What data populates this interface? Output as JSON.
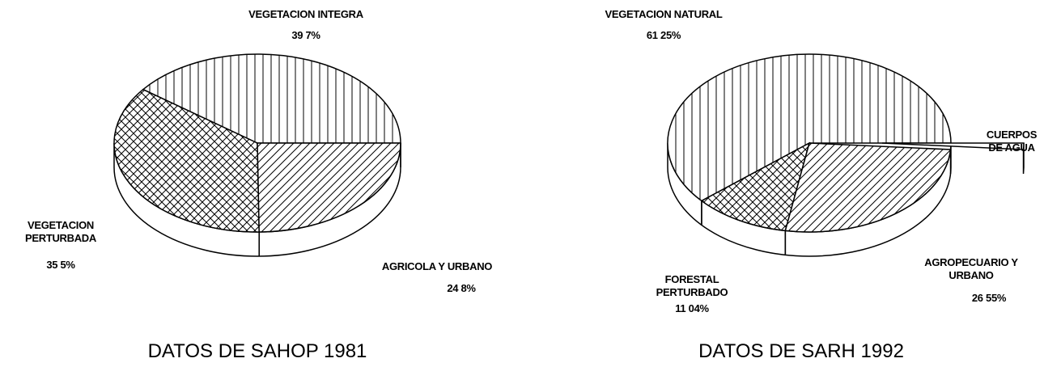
{
  "chart_data": [
    {
      "type": "pie",
      "title": "DATOS DE SAHOP 1981",
      "categories": [
        "VEGETACION INTEGRA",
        "VEGETACION PERTURBADA",
        "AGRICOLA Y URBANO"
      ],
      "values": [
        39.7,
        35.5,
        24.8
      ],
      "value_labels": [
        "39 7%",
        "35 5%",
        "24 8%"
      ],
      "color": "#ffffff"
    },
    {
      "type": "pie",
      "title": "DATOS DE SARH 1992",
      "categories": [
        "VEGETACION NATURAL",
        "FORESTAL PERTURBADO",
        "AGROPECUARIO Y URBANO",
        "CUERPOS DE AGUA"
      ],
      "values": [
        61.25,
        11.04,
        26.55,
        1.16
      ],
      "value_labels": [
        "61 25%",
        "11 04%",
        "26 55%",
        null
      ],
      "color": "#ffffff"
    }
  ]
}
